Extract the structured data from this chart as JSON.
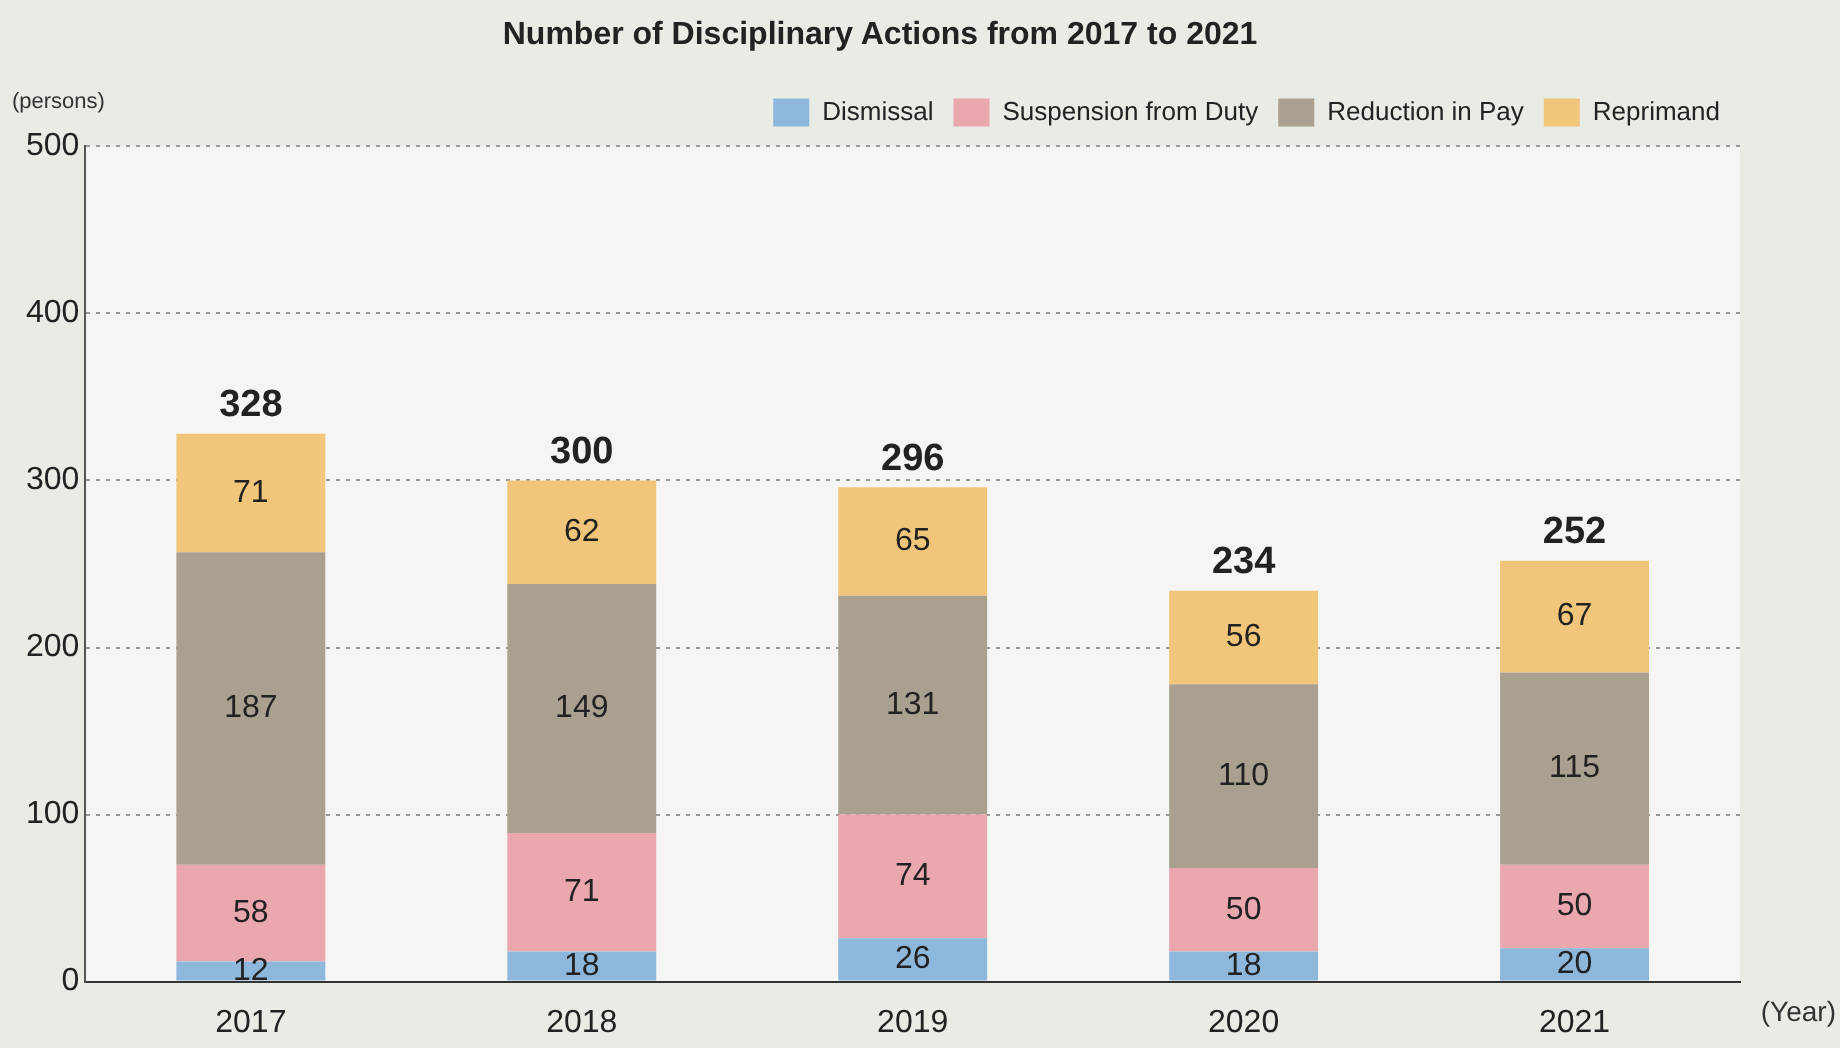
{
  "chart_data": {
    "type": "bar",
    "title": "Number of Disciplinary Actions from 2017 to 2021",
    "ylabel": "(persons)",
    "xlabel": "(Year)",
    "categories": [
      "2017",
      "2018",
      "2019",
      "2020",
      "2021"
    ],
    "series": [
      {
        "name": "Dismissal",
        "color": "#8db8dc",
        "values": [
          12,
          18,
          26,
          18,
          20
        ]
      },
      {
        "name": "Suspension from Duty",
        "color": "#eaa7ae",
        "values": [
          58,
          71,
          74,
          50,
          50
        ]
      },
      {
        "name": "Reduction in Pay",
        "color": "#aaa08f",
        "values": [
          187,
          149,
          131,
          110,
          115
        ]
      },
      {
        "name": "Reprimand",
        "color": "#f1c57a",
        "values": [
          71,
          62,
          65,
          56,
          67
        ]
      }
    ],
    "stacked": true,
    "totals": [
      "328",
      "300",
      "296",
      "234",
      "252"
    ],
    "data_labels": true,
    "ylim": [
      0,
      500
    ],
    "yticks": [
      0,
      100,
      200,
      300,
      400,
      500
    ],
    "grid": "y",
    "legend": "top right"
  }
}
